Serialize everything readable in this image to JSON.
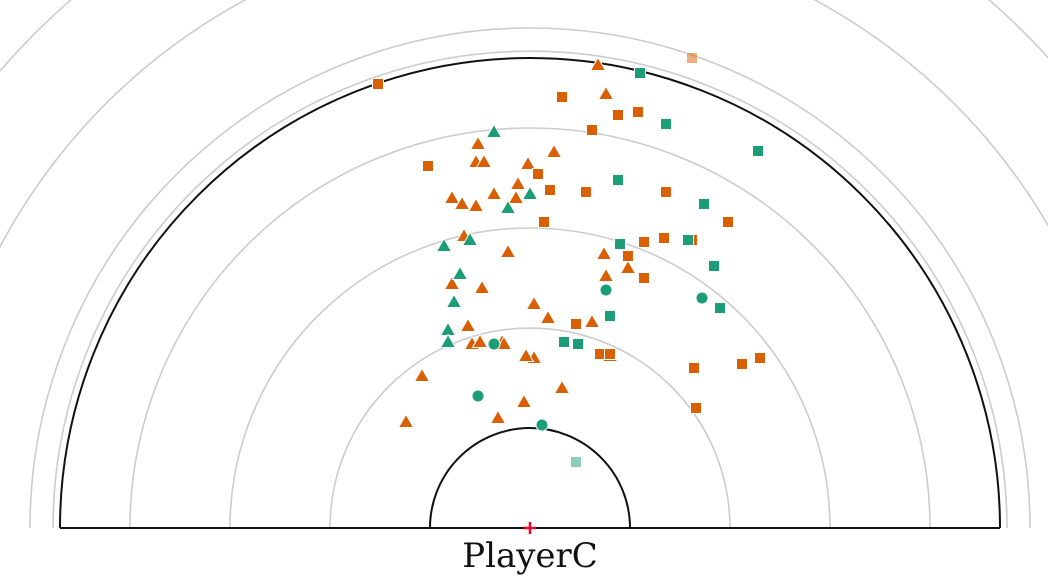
{
  "player_label": "PlayerC",
  "colors": {
    "orange": "#d95f02",
    "teal": "#1b9e77",
    "ring": "#cccccc",
    "court_line": "#111111",
    "origin_marker": "#e4002b"
  },
  "chart_data": {
    "type": "scatter",
    "title": "",
    "xlabel": "",
    "ylabel": "",
    "xlim": [
      -490,
      490
    ],
    "ylim": [
      0,
      470
    ],
    "rings": [
      100,
      200,
      300,
      400,
      500,
      600,
      700
    ],
    "boundaries": {
      "inner_arc_radius": 100,
      "outer_arc_radius": 470
    },
    "legend": "none",
    "series": [
      {
        "color": "orange",
        "marker": "triangle",
        "points": [
          [
            68,
            463
          ],
          [
            76,
            434
          ],
          [
            -52,
            384
          ],
          [
            -54,
            366
          ],
          [
            -46,
            366
          ],
          [
            24,
            376
          ],
          [
            -2,
            364
          ],
          [
            -78,
            330
          ],
          [
            -68,
            324
          ],
          [
            -54,
            322
          ],
          [
            -36,
            334
          ],
          [
            -12,
            344
          ],
          [
            -14,
            330
          ],
          [
            -66,
            292
          ],
          [
            -22,
            276
          ],
          [
            74,
            274
          ],
          [
            76,
            252
          ],
          [
            98,
            260
          ],
          [
            -78,
            244
          ],
          [
            -48,
            240
          ],
          [
            4,
            224
          ],
          [
            -62,
            202
          ],
          [
            18,
            210
          ],
          [
            62,
            206
          ],
          [
            -58,
            184
          ],
          [
            -50,
            186
          ],
          [
            -28,
            186
          ],
          [
            -26,
            184
          ],
          [
            4,
            170
          ],
          [
            80,
            172
          ],
          [
            -108,
            152
          ],
          [
            -4,
            172
          ],
          [
            32,
            140
          ],
          [
            -6,
            126
          ],
          [
            -32,
            110
          ],
          [
            -124,
            106
          ]
        ]
      },
      {
        "color": "orange",
        "marker": "square",
        "points": [
          [
            -152,
            444
          ],
          [
            32,
            431
          ],
          [
            88,
            413
          ],
          [
            108,
            416
          ],
          [
            62,
            398
          ],
          [
            -102,
            362
          ],
          [
            8,
            354
          ],
          [
            20,
            338
          ],
          [
            56,
            336
          ],
          [
            136,
            336
          ],
          [
            198,
            306
          ],
          [
            14,
            306
          ],
          [
            134,
            290
          ],
          [
            114,
            286
          ],
          [
            162,
            288
          ],
          [
            98,
            272
          ],
          [
            114,
            250
          ],
          [
            46,
            204
          ],
          [
            70,
            174
          ],
          [
            80,
            174
          ],
          [
            164,
            160
          ],
          [
            212,
            164
          ],
          [
            230,
            170
          ],
          [
            166,
            120
          ]
        ]
      },
      {
        "color": "teal",
        "marker": "triangle",
        "points": [
          [
            -36,
            396
          ],
          [
            -22,
            320
          ],
          [
            0,
            334
          ],
          [
            -86,
            282
          ],
          [
            -60,
            288
          ],
          [
            -70,
            254
          ],
          [
            -76,
            226
          ],
          [
            -82,
            198
          ],
          [
            -82,
            186
          ]
        ]
      },
      {
        "color": "teal",
        "marker": "square",
        "points": [
          [
            110,
            455
          ],
          [
            136,
            404
          ],
          [
            228,
            377
          ],
          [
            88,
            348
          ],
          [
            174,
            324
          ],
          [
            90,
            284
          ],
          [
            158,
            288
          ],
          [
            184,
            262
          ],
          [
            190,
            220
          ],
          [
            80,
            212
          ],
          [
            34,
            186
          ],
          [
            48,
            184
          ]
        ]
      },
      {
        "color": "teal",
        "marker": "circle",
        "points": [
          [
            76,
            238
          ],
          [
            172,
            230
          ],
          [
            -36,
            184
          ],
          [
            -52,
            132
          ],
          [
            12,
            103
          ]
        ]
      },
      {
        "color": "teal",
        "marker": "square-faded",
        "points": [
          [
            46,
            66
          ]
        ]
      },
      {
        "color": "orange",
        "marker": "square-faded",
        "points": [
          [
            162,
            470
          ]
        ]
      }
    ]
  }
}
